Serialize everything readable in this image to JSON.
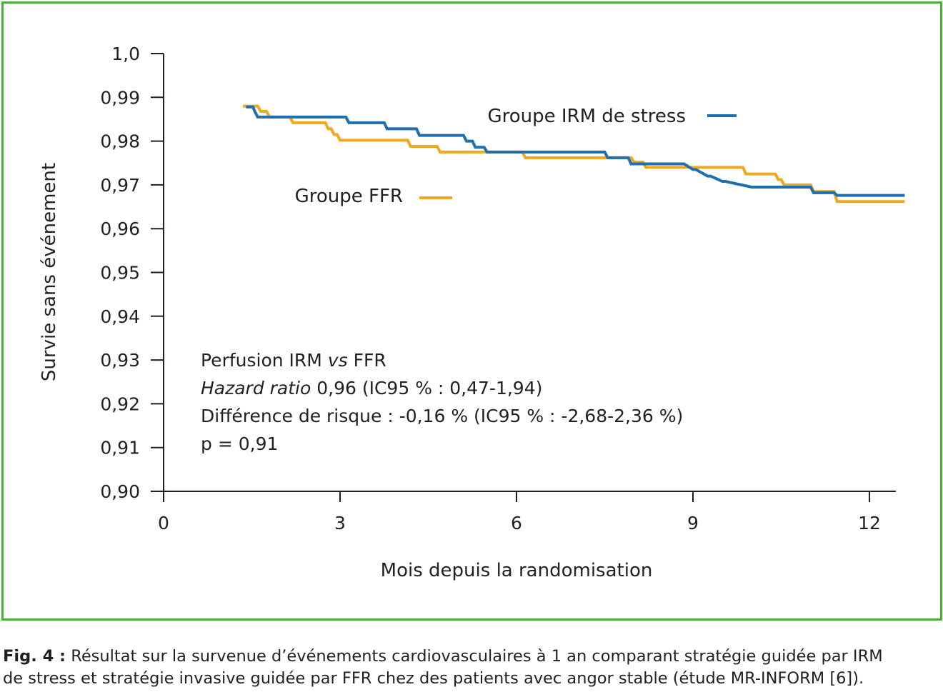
{
  "chart_data": {
    "type": "line",
    "subtype": "step (Kaplan-Meier)",
    "xlabel": "Mois depuis la randomisation",
    "ylabel": "Survie sans événement",
    "xlim": [
      0,
      12.6
    ],
    "ylim": [
      0.9,
      1.0
    ],
    "x_ticks": [
      {
        "value": 0,
        "label": "0"
      },
      {
        "value": 3,
        "label": "3"
      },
      {
        "value": 6,
        "label": "6"
      },
      {
        "value": 9,
        "label": "9"
      },
      {
        "value": 12,
        "label": "12"
      }
    ],
    "y_ticks": [
      {
        "value": 1.0,
        "label": "1,0"
      },
      {
        "value": 0.99,
        "label": "0,99"
      },
      {
        "value": 0.98,
        "label": "0,98"
      },
      {
        "value": 0.97,
        "label": "0,97"
      },
      {
        "value": 0.96,
        "label": "0,96"
      },
      {
        "value": 0.95,
        "label": "0,95"
      },
      {
        "value": 0.94,
        "label": "0,94"
      },
      {
        "value": 0.93,
        "label": "0,93"
      },
      {
        "value": 0.92,
        "label": "0,92"
      },
      {
        "value": 0.91,
        "label": "0,91"
      },
      {
        "value": 0.9,
        "label": "0,90"
      }
    ],
    "grid": false,
    "series": [
      {
        "name": "Groupe IRM de stress",
        "color": "#1f6fae",
        "x": [
          1.4,
          1.52,
          1.55,
          1.6,
          3.1,
          3.15,
          3.75,
          3.8,
          4.3,
          4.35,
          5.1,
          5.15,
          5.25,
          5.3,
          5.45,
          5.5,
          7.5,
          7.55,
          7.9,
          7.95,
          8.85,
          9.0,
          9.05,
          9.25,
          9.3,
          9.5,
          9.55,
          10.0,
          10.05,
          10.55,
          10.6,
          11.0,
          11.05,
          11.4,
          11.45,
          12.6
        ],
        "y": [
          0.9878,
          0.9878,
          0.9868,
          0.9855,
          0.9855,
          0.9842,
          0.9842,
          0.9828,
          0.9828,
          0.9813,
          0.9813,
          0.98,
          0.98,
          0.9786,
          0.9786,
          0.9775,
          0.9775,
          0.9762,
          0.9762,
          0.9748,
          0.9748,
          0.9735,
          0.9735,
          0.972,
          0.972,
          0.9708,
          0.9708,
          0.9695,
          0.9695,
          0.9695,
          0.9695,
          0.9695,
          0.9682,
          0.9682,
          0.9676,
          0.9676
        ]
      },
      {
        "name": "Groupe FFR",
        "color": "#f0a81c",
        "x": [
          1.35,
          1.6,
          1.65,
          1.75,
          1.8,
          2.15,
          2.2,
          2.75,
          2.8,
          2.85,
          2.9,
          2.95,
          3.0,
          4.15,
          4.2,
          4.65,
          4.7,
          6.1,
          6.15,
          7.95,
          8.0,
          8.15,
          8.2,
          8.95,
          9.0,
          9.85,
          9.9,
          10.4,
          10.45,
          10.5,
          10.55,
          11.0,
          11.05,
          11.4,
          11.45,
          12.6
        ],
        "y": [
          0.988,
          0.988,
          0.9868,
          0.9868,
          0.9855,
          0.9855,
          0.9842,
          0.9842,
          0.9828,
          0.9828,
          0.9815,
          0.9815,
          0.9802,
          0.9802,
          0.9788,
          0.9788,
          0.9775,
          0.9775,
          0.9762,
          0.9762,
          0.9752,
          0.9752,
          0.974,
          0.974,
          0.974,
          0.974,
          0.9725,
          0.9725,
          0.9712,
          0.9712,
          0.97,
          0.97,
          0.9685,
          0.9685,
          0.9662,
          0.9662
        ]
      }
    ],
    "legend_placement": "inline, upper-middle",
    "annotation": {
      "line1_pre": "Perfusion IRM ",
      "line1_it": "vs",
      "line1_post": " FFR",
      "line2_it": "Hazard ratio",
      "line2_post": " 0,96 (IC95 % : 0,47-1,94)",
      "line3": "Différence de risque : -0,16 % (IC95 % : -2,68-2,36 %)",
      "line4": "p = 0,91"
    }
  },
  "caption": {
    "label": "Fig. 4 :",
    "line1": " Résultat sur la survenue d’événements cardiovasculaires à 1 an comparant stratégie guidée par IRM",
    "line2": "de stress et stratégie invasive guidée par FFR chez des patients avec angor stable (étude MR-INFORM [6])."
  },
  "colors": {
    "frame": "#4caf3d",
    "axis": "#231f20"
  }
}
